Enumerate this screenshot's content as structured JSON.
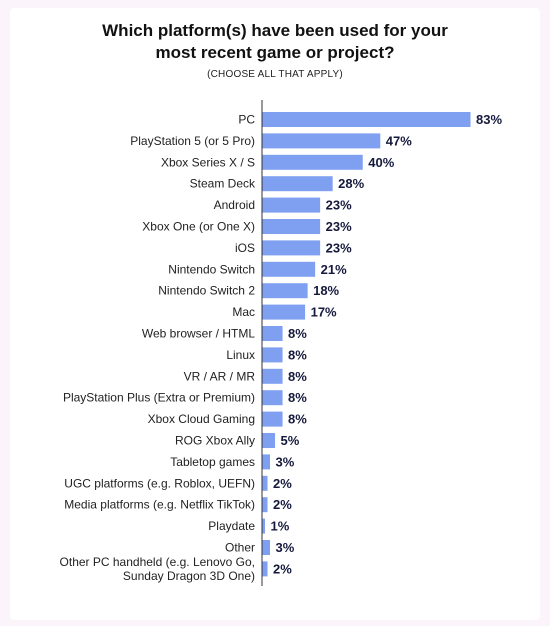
{
  "chart_data": {
    "type": "bar",
    "orientation": "horizontal",
    "title_lines": [
      "Which platform(s) have been used for your",
      "most recent game or project?"
    ],
    "subtitle": "(CHOOSE ALL THAT APPLY)",
    "xlabel": "",
    "ylabel": "",
    "xlim": [
      0,
      83
    ],
    "grid": false,
    "bar_color": "#7f9ff0",
    "categories": [
      [
        "PC"
      ],
      [
        "PlayStation 5 (or 5 Pro)"
      ],
      [
        "Xbox Series X / S"
      ],
      [
        "Steam Deck"
      ],
      [
        "Android"
      ],
      [
        "Xbox One (or One X)"
      ],
      [
        "iOS"
      ],
      [
        "Nintendo Switch"
      ],
      [
        "Nintendo Switch 2"
      ],
      [
        "Mac"
      ],
      [
        "Web browser / HTML"
      ],
      [
        "Linux"
      ],
      [
        "VR / AR / MR"
      ],
      [
        "PlayStation Plus (Extra or Premium)"
      ],
      [
        "Xbox Cloud Gaming"
      ],
      [
        "ROG Xbox Ally"
      ],
      [
        "Tabletop games"
      ],
      [
        "UGC platforms (e.g. Roblox, UEFN)"
      ],
      [
        "Media platforms (e.g. Netflix TikTok)"
      ],
      [
        "Playdate"
      ],
      [
        "Other"
      ],
      [
        "Other PC handheld (e.g. Lenovo Go,",
        "Sunday Dragon 3D One)"
      ]
    ],
    "values": [
      83,
      47,
      40,
      28,
      23,
      23,
      23,
      21,
      18,
      17,
      8,
      8,
      8,
      8,
      8,
      5,
      3,
      2,
      2,
      1,
      3,
      2
    ],
    "value_labels": [
      "83%",
      "47%",
      "40%",
      "28%",
      "23%",
      "23%",
      "23%",
      "21%",
      "18%",
      "17%",
      "8%",
      "8%",
      "8%",
      "8%",
      "8%",
      "5%",
      "3%",
      "2%",
      "2%",
      "1%",
      "3%",
      "2%"
    ]
  }
}
